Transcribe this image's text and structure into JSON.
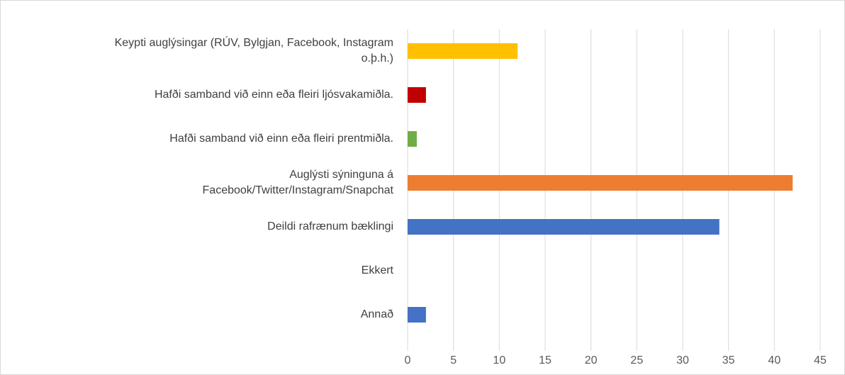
{
  "chart_data": {
    "type": "bar",
    "orientation": "horizontal",
    "categories": [
      "Keypti auglýsingar (RÚV, Bylgjan, Facebook, Instagram\no.þ.h.)",
      "Hafði samband við einn eða fleiri ljósvakamiðla.",
      "Hafði samband við einn eða fleiri prentmiðla.",
      "Auglýsti sýninguna á\nFacebook/Twitter/Instagram/Snapchat",
      "Deildi rafrænum bæklingi",
      "Ekkert",
      "Annað"
    ],
    "values": [
      12,
      2,
      1,
      42,
      34,
      0,
      2
    ],
    "colors": [
      "#FFC000",
      "#C00000",
      "#70AD47",
      "#ED7D31",
      "#4472C4",
      "#4472C4",
      "#4472C4"
    ],
    "xlim": [
      0,
      45
    ],
    "xticks": [
      0,
      5,
      10,
      15,
      20,
      25,
      30,
      35,
      40,
      45
    ],
    "grid": true
  }
}
